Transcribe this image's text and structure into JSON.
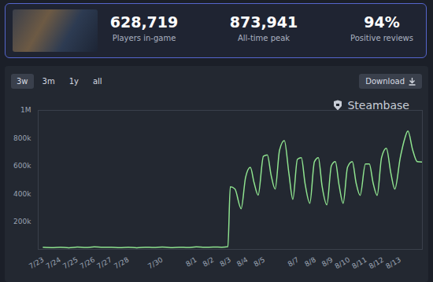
{
  "header": {
    "stats": [
      {
        "value": "628,719",
        "label": "Players in-game"
      },
      {
        "value": "873,941",
        "label": "All-time peak"
      },
      {
        "value": "94%",
        "label": "Positive reviews"
      }
    ]
  },
  "controls": {
    "ranges": [
      "3w",
      "3m",
      "1y",
      "all"
    ],
    "active": "3w",
    "download": "Download"
  },
  "branding": "Steambase",
  "chart_data": {
    "type": "line",
    "color": "#8fe38f",
    "grid": false,
    "x": [
      0,
      0.5,
      1,
      1.5,
      2,
      2.5,
      3,
      3.5,
      4,
      4.5,
      5,
      5.5,
      6,
      6.5,
      7,
      7.5,
      8,
      8.5,
      9,
      9.5,
      10,
      10.5,
      10.86,
      11,
      11.27,
      11.64,
      11.9,
      12.18,
      12.4,
      12.64,
      12.95,
      13.18,
      13.4,
      13.64,
      13.9,
      14.18,
      14.45,
      14.68,
      14.95,
      15.18,
      15.4,
      15.68,
      15.95,
      16.18,
      16.4,
      16.68,
      16.95,
      17.18,
      17.4,
      17.64,
      17.9,
      18.18,
      18.4,
      18.64,
      18.95,
      19.18,
      19.4,
      19.64,
      19.9,
      20.18,
      20.45,
      20.68,
      21,
      21.27,
      21.45,
      21.73,
      22,
      22.27
    ],
    "values": [
      15000,
      13000,
      16000,
      12000,
      17000,
      14000,
      18000,
      15000,
      16000,
      13000,
      15000,
      12000,
      16000,
      14000,
      17000,
      13000,
      16000,
      14000,
      18000,
      15000,
      17000,
      16000,
      20000,
      450000,
      435000,
      293000,
      518000,
      590000,
      480000,
      390000,
      670000,
      680000,
      535000,
      434000,
      715000,
      783000,
      546000,
      360000,
      648000,
      660000,
      473000,
      332000,
      631000,
      660000,
      456000,
      321000,
      603000,
      631000,
      462000,
      332000,
      592000,
      631000,
      479000,
      389000,
      614000,
      614000,
      479000,
      389000,
      660000,
      727000,
      546000,
      434000,
      660000,
      800000,
      851000,
      715000,
      631000,
      628719
    ],
    "xlim": [
      -0.3,
      22.3
    ],
    "xticks": [
      {
        "value": 0,
        "label": "7/23"
      },
      {
        "value": 1,
        "label": "7/24"
      },
      {
        "value": 2,
        "label": "7/25"
      },
      {
        "value": 3,
        "label": "7/26"
      },
      {
        "value": 4,
        "label": "7/27"
      },
      {
        "value": 5,
        "label": "7/28"
      },
      {
        "value": 7,
        "label": "7/30"
      },
      {
        "value": 9,
        "label": "8/1"
      },
      {
        "value": 10,
        "label": "8/2"
      },
      {
        "value": 11,
        "label": "8/3"
      },
      {
        "value": 12,
        "label": "8/4"
      },
      {
        "value": 13,
        "label": "8/5"
      },
      {
        "value": 15,
        "label": "8/7"
      },
      {
        "value": 16,
        "label": "8/8"
      },
      {
        "value": 17,
        "label": "8/9"
      },
      {
        "value": 18,
        "label": "8/10"
      },
      {
        "value": 19,
        "label": "8/11"
      },
      {
        "value": 20,
        "label": "8/12"
      },
      {
        "value": 21,
        "label": "8/13"
      }
    ],
    "ylim": [
      0,
      1000000
    ],
    "yticks": [
      {
        "value": 200000,
        "label": "200k"
      },
      {
        "value": 400000,
        "label": "400k"
      },
      {
        "value": 600000,
        "label": "600k"
      },
      {
        "value": 800000,
        "label": "800k"
      },
      {
        "value": 1000000,
        "label": "1M"
      }
    ]
  }
}
